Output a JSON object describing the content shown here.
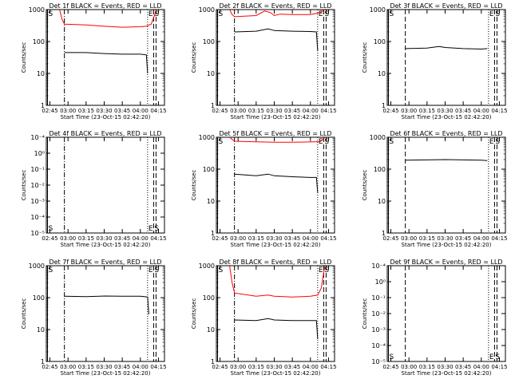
{
  "figure": {
    "xlabel": "Start Time (23-Oct-15 02:42:20)",
    "ylabel": "Counts/sec",
    "x_ticks": [
      "02:45",
      "03:00",
      "03:15",
      "03:30",
      "03:45",
      "04:00",
      "04:15"
    ]
  },
  "chart_data": [
    {
      "type": "line",
      "title": "Det 1f BLACK = Events, RED = LLD",
      "xlabel": "Start Time (23-Oct-15 02:42:20)",
      "ylabel": "Counts/sec",
      "xlim": [
        "02:42",
        "04:20"
      ],
      "ylim": [
        1,
        1000
      ],
      "yscale": "log",
      "yticks": [
        "1",
        "10",
        "100",
        "1000"
      ],
      "markers": [
        {
          "label": "S",
          "x": "02:43",
          "style": "solid"
        },
        {
          "label": "",
          "x": "02:57",
          "style": "dash-dot"
        },
        {
          "label": "E",
          "x": "04:06",
          "style": "dotted"
        },
        {
          "label": "S",
          "x": "04:11",
          "style": "dashed"
        },
        {
          "label": "",
          "x": "04:13",
          "style": "dashed"
        }
      ],
      "series": [
        {
          "color": "#ff0000",
          "segments": [
            [
              [
                "02:53",
                1000
              ],
              [
                "02:55",
                500
              ],
              [
                "02:57",
                350
              ],
              [
                "03:15",
                330
              ],
              [
                "03:30",
                300
              ],
              [
                "03:45",
                280
              ],
              [
                "04:00",
                290
              ],
              [
                "04:05",
                300
              ],
              [
                "04:09",
                350
              ],
              [
                "04:12",
                700
              ],
              [
                "04:13",
                1000
              ]
            ]
          ]
        },
        {
          "color": "#000000",
          "segments": [
            [
              [
                "02:57",
                45
              ],
              [
                "03:15",
                45
              ],
              [
                "03:30",
                42
              ],
              [
                "03:45",
                40
              ],
              [
                "04:00",
                40
              ],
              [
                "04:05",
                38
              ],
              [
                "04:06",
                10
              ]
            ]
          ]
        }
      ]
    },
    {
      "type": "line",
      "title": "Det 2f BLACK = Events, RED = LLD",
      "xlabel": "Start Time (23-Oct-15 02:42:20)",
      "ylabel": "Counts/sec",
      "xlim": [
        "02:42",
        "04:20"
      ],
      "ylim": [
        1,
        1000
      ],
      "yscale": "log",
      "yticks": [
        "1",
        "10",
        "100",
        "1000"
      ],
      "markers": [
        {
          "label": "S",
          "x": "02:43",
          "style": "solid"
        },
        {
          "label": "",
          "x": "02:57",
          "style": "dash-dot"
        },
        {
          "label": "E",
          "x": "04:06",
          "style": "dotted"
        },
        {
          "label": "S",
          "x": "04:11",
          "style": "dashed"
        },
        {
          "label": "",
          "x": "04:13",
          "style": "dashed"
        }
      ],
      "series": [
        {
          "color": "#ff0000",
          "segments": [
            [
              [
                "02:53",
                1000
              ],
              [
                "02:55",
                700
              ],
              [
                "02:57",
                600
              ],
              [
                "03:15",
                650
              ],
              [
                "03:22",
                900
              ],
              [
                "03:27",
                800
              ],
              [
                "03:30",
                650
              ],
              [
                "03:35",
                720
              ],
              [
                "03:45",
                700
              ],
              [
                "04:00",
                700
              ],
              [
                "04:08",
                800
              ],
              [
                "04:12",
                1000
              ]
            ]
          ]
        },
        {
          "color": "#000000",
          "segments": [
            [
              [
                "02:57",
                200
              ],
              [
                "03:15",
                210
              ],
              [
                "03:25",
                250
              ],
              [
                "03:30",
                220
              ],
              [
                "03:45",
                210
              ],
              [
                "04:00",
                205
              ],
              [
                "04:05",
                200
              ],
              [
                "04:06",
                50
              ]
            ]
          ]
        }
      ]
    },
    {
      "type": "line",
      "title": "Det 3f BLACK = Events, RED = LLD",
      "xlabel": "Start Time (23-Oct-15 02:42:20)",
      "ylabel": "Counts/sec",
      "xlim": [
        "02:42",
        "04:20"
      ],
      "ylim": [
        1,
        1000
      ],
      "yscale": "log",
      "yticks": [
        "1",
        "10",
        "100",
        "1000"
      ],
      "markers": [
        {
          "label": "S",
          "x": "02:43",
          "style": "solid"
        },
        {
          "label": "",
          "x": "02:57",
          "style": "dashed"
        },
        {
          "label": "E",
          "x": "04:06",
          "style": "dotted"
        },
        {
          "label": "S",
          "x": "04:11",
          "style": "dashed"
        },
        {
          "label": "",
          "x": "04:13",
          "style": "dashed"
        }
      ],
      "series": [
        {
          "color": "#000000",
          "segments": [
            [
              [
                "02:57",
                60
              ],
              [
                "03:15",
                62
              ],
              [
                "03:25",
                70
              ],
              [
                "03:30",
                65
              ],
              [
                "03:45",
                60
              ],
              [
                "04:00",
                58
              ],
              [
                "04:05",
                60
              ]
            ]
          ]
        }
      ]
    },
    {
      "type": "line",
      "title": "Det 4f BLACK = Events, RED = LLD",
      "xlabel": "Start Time (23-Oct-15 02:42:20)",
      "ylabel": "Counts/sec",
      "xlim": [
        "02:42",
        "04:20"
      ],
      "ylim": [
        1e-05,
        0.0001
      ],
      "yscale": "log",
      "yticks": [
        "10⁻⁵",
        "10⁻⁴",
        "10⁻³",
        "10⁻²",
        "10⁻¹",
        "10⁰",
        "10⁻⁴"
      ],
      "markers": [
        {
          "label": "S",
          "x": "02:43",
          "style": "solid"
        },
        {
          "label": "",
          "x": "02:57",
          "style": "dash-dot"
        },
        {
          "label": "E",
          "x": "04:06",
          "style": "dotted"
        },
        {
          "label": "S",
          "x": "04:11",
          "style": "dashed"
        },
        {
          "label": "",
          "x": "04:13",
          "style": "dashed"
        }
      ],
      "series": []
    },
    {
      "type": "line",
      "title": "Det 5f BLACK = Events, RED = LLD",
      "xlabel": "Start Time (23-Oct-15 02:42:20)",
      "ylabel": "Counts/sec",
      "xlim": [
        "02:42",
        "04:20"
      ],
      "ylim": [
        1,
        1000
      ],
      "yscale": "log",
      "yticks": [
        "1",
        "10",
        "100",
        "1000"
      ],
      "markers": [
        {
          "label": "S",
          "x": "02:43",
          "style": "solid"
        },
        {
          "label": "",
          "x": "02:57",
          "style": "dash-dot"
        },
        {
          "label": "E",
          "x": "04:06",
          "style": "dotted"
        },
        {
          "label": "S",
          "x": "04:11",
          "style": "dashed"
        },
        {
          "label": "",
          "x": "04:13",
          "style": "dashed"
        }
      ],
      "series": [
        {
          "color": "#ff0000",
          "segments": [
            [
              [
                "02:53",
                1000
              ],
              [
                "02:57",
                750
              ],
              [
                "03:15",
                720
              ],
              [
                "03:30",
                700
              ],
              [
                "03:45",
                700
              ],
              [
                "04:00",
                710
              ],
              [
                "04:08",
                730
              ],
              [
                "04:11",
                900
              ],
              [
                "04:12",
                1000
              ]
            ]
          ]
        },
        {
          "color": "#000000",
          "segments": [
            [
              [
                "02:57",
                70
              ],
              [
                "03:15",
                62
              ],
              [
                "03:25",
                70
              ],
              [
                "03:30",
                62
              ],
              [
                "03:45",
                58
              ],
              [
                "04:00",
                55
              ],
              [
                "04:05",
                55
              ],
              [
                "04:06",
                18
              ]
            ]
          ]
        }
      ]
    },
    {
      "type": "line",
      "title": "Det 6f BLACK = Events, RED = LLD",
      "xlabel": "Start Time (23-Oct-15 02:42:20)",
      "ylabel": "Counts/sec",
      "xlim": [
        "02:42",
        "04:20"
      ],
      "ylim": [
        1,
        1000
      ],
      "yscale": "log",
      "yticks": [
        "1",
        "10",
        "100",
        "1000"
      ],
      "markers": [
        {
          "label": "S",
          "x": "02:43",
          "style": "solid"
        },
        {
          "label": "",
          "x": "02:57",
          "style": "dashed"
        },
        {
          "label": "E",
          "x": "04:06",
          "style": "dotted"
        },
        {
          "label": "S",
          "x": "04:11",
          "style": "dashed"
        },
        {
          "label": "",
          "x": "04:13",
          "style": "dashed"
        }
      ],
      "series": [
        {
          "color": "#000000",
          "segments": [
            [
              [
                "02:57",
                190
              ],
              [
                "03:15",
                195
              ],
              [
                "03:30",
                200
              ],
              [
                "03:45",
                195
              ],
              [
                "04:00",
                190
              ],
              [
                "04:05",
                185
              ]
            ]
          ]
        }
      ]
    },
    {
      "type": "line",
      "title": "Det 7f BLACK = Events, RED = LLD",
      "xlabel": "Start Time (23-Oct-15 02:42:20)",
      "ylabel": "Counts/sec",
      "xlim": [
        "02:42",
        "04:20"
      ],
      "ylim": [
        1,
        1000
      ],
      "yscale": "log",
      "yticks": [
        "1",
        "10",
        "100",
        "1000"
      ],
      "markers": [
        {
          "label": "S",
          "x": "02:43",
          "style": "solid"
        },
        {
          "label": "",
          "x": "02:57",
          "style": "dash-dot"
        },
        {
          "label": "E",
          "x": "04:06",
          "style": "dotted"
        },
        {
          "label": "S",
          "x": "04:11",
          "style": "dashed"
        },
        {
          "label": "",
          "x": "04:13",
          "style": "dashed"
        }
      ],
      "series": [
        {
          "color": "#000000",
          "segments": [
            [
              [
                "02:57",
                110
              ],
              [
                "03:15",
                108
              ],
              [
                "03:30",
                112
              ],
              [
                "03:45",
                110
              ],
              [
                "04:00",
                110
              ],
              [
                "04:06",
                105
              ],
              [
                "04:07",
                30
              ]
            ]
          ]
        }
      ]
    },
    {
      "type": "line",
      "title": "Det 8f BLACK = Events, RED = LLD",
      "xlabel": "Start Time (23-Oct-15 02:42:20)",
      "ylabel": "Counts/sec",
      "xlim": [
        "02:42",
        "04:20"
      ],
      "ylim": [
        1,
        1000
      ],
      "yscale": "log",
      "yticks": [
        "1",
        "10",
        "100",
        "1000"
      ],
      "markers": [
        {
          "label": "S",
          "x": "02:43",
          "style": "solid"
        },
        {
          "label": "",
          "x": "02:57",
          "style": "dash-dot"
        },
        {
          "label": "E",
          "x": "04:06",
          "style": "dotted"
        },
        {
          "label": "S",
          "x": "04:11",
          "style": "dashed"
        },
        {
          "label": "",
          "x": "04:13",
          "style": "dashed"
        }
      ],
      "series": [
        {
          "color": "#ff0000",
          "segments": [
            [
              [
                "02:53",
                1000
              ],
              [
                "02:55",
                300
              ],
              [
                "02:57",
                140
              ],
              [
                "03:15",
                110
              ],
              [
                "03:25",
                120
              ],
              [
                "03:30",
                110
              ],
              [
                "03:45",
                105
              ],
              [
                "04:00",
                110
              ],
              [
                "04:06",
                120
              ],
              [
                "04:09",
                200
              ],
              [
                "04:11",
                600
              ],
              [
                "04:12",
                1000
              ]
            ]
          ]
        },
        {
          "color": "#000000",
          "segments": [
            [
              [
                "02:57",
                20
              ],
              [
                "03:15",
                19
              ],
              [
                "03:25",
                22
              ],
              [
                "03:30",
                20
              ],
              [
                "03:45",
                19
              ],
              [
                "04:00",
                19
              ],
              [
                "04:05",
                19
              ],
              [
                "04:06",
                5
              ]
            ]
          ]
        }
      ]
    },
    {
      "type": "line",
      "title": "Det 9f BLACK = Events, RED = LLD",
      "xlabel": "Start Time (23-Oct-15 02:42:20)",
      "ylabel": "Counts/sec",
      "xlim": [
        "02:42",
        "04:20"
      ],
      "ylim": [
        1e-05,
        0.0001
      ],
      "yscale": "log",
      "yticks": [
        "10⁻⁵",
        "10⁻⁴",
        "10⁻³",
        "10⁻²",
        "10⁻¹",
        "10⁰",
        "10⁻⁴"
      ],
      "markers": [
        {
          "label": "S",
          "x": "02:43",
          "style": "solid"
        },
        {
          "label": "",
          "x": "02:57",
          "style": "dashed"
        },
        {
          "label": "E",
          "x": "04:06",
          "style": "dotted"
        },
        {
          "label": "S",
          "x": "04:11",
          "style": "dashed"
        },
        {
          "label": "",
          "x": "04:13",
          "style": "dashed"
        }
      ],
      "series": []
    }
  ]
}
